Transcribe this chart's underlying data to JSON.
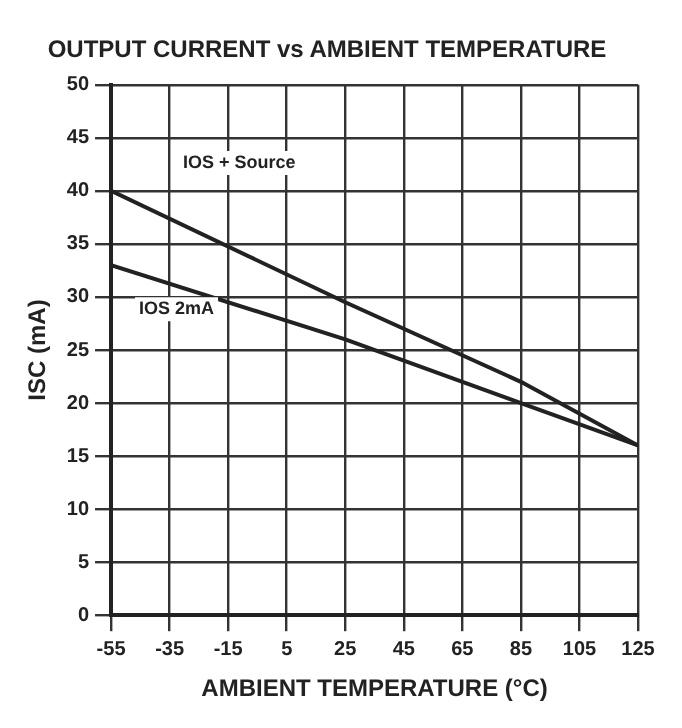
{
  "chart_data": {
    "type": "line",
    "title": "OUTPUT CURRENT vs AMBIENT TEMPERATURE",
    "xlabel": "AMBIENT TEMPERATURE (°C)",
    "ylabel": "ISC (mA)",
    "series": [
      {
        "name": "IOS + Source",
        "color": "#222222",
        "x": [
          -55,
          25,
          85,
          125
        ],
        "values": [
          40,
          29.5,
          22,
          16
        ]
      },
      {
        "name": "IOS 2mA",
        "color": "#222222",
        "x": [
          -55,
          25,
          85,
          125
        ],
        "values": [
          33,
          26,
          20,
          16
        ]
      }
    ],
    "xlim": [
      -55,
      125
    ],
    "xticks": [
      -55,
      -35,
      -15,
      5,
      25,
      45,
      65,
      85,
      105,
      125
    ],
    "ylim": [
      0,
      50
    ],
    "yticks": [
      0,
      5,
      10,
      15,
      20,
      25,
      30,
      35,
      40,
      45,
      50
    ],
    "grid": true,
    "legend": false,
    "marker": "none",
    "line_style": "solid"
  }
}
